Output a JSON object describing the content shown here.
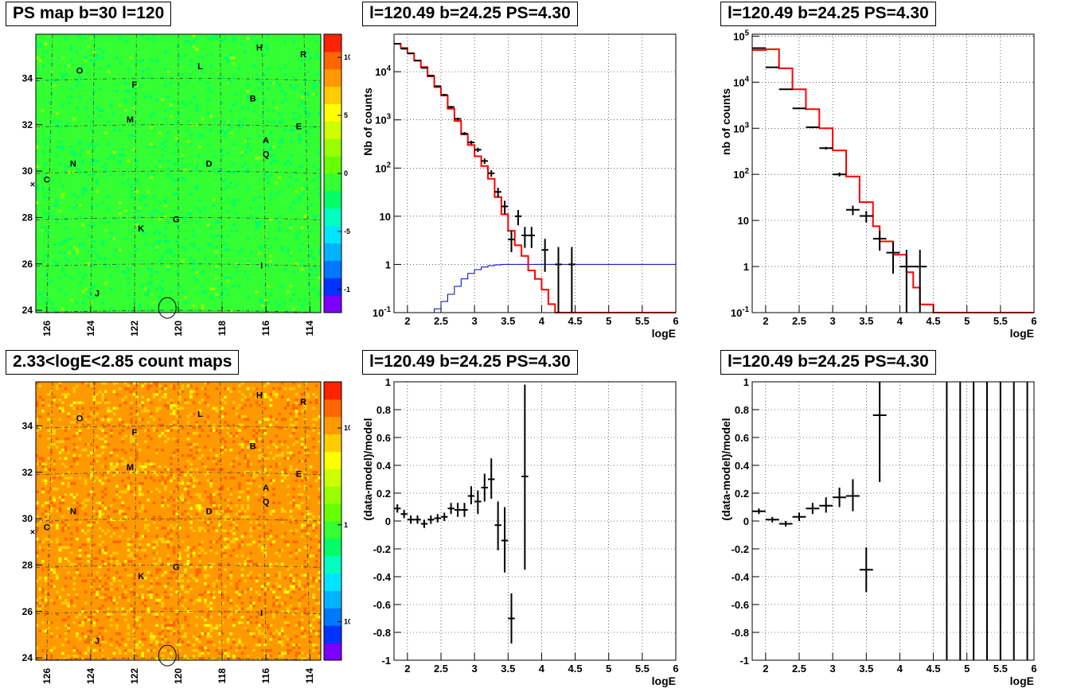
{
  "colors": {
    "model_line": "#ff0000",
    "data_points": "#000000",
    "blue_curve": "#0000cc",
    "grid": "#000000"
  },
  "chart_data": [
    {
      "id": "psmap",
      "type": "heatmap",
      "title": "PS map b=30 l=120",
      "x_ticks": [
        "126",
        "124",
        "122",
        "120",
        "118",
        "116",
        "114"
      ],
      "y_ticks": [
        "24",
        "26",
        "28",
        "30",
        "32",
        "34"
      ],
      "xlim": [
        126.5,
        113.5
      ],
      "ylim": [
        23.9,
        35.9
      ],
      "colorbar_ticks": [
        "10",
        "5",
        "0",
        "-5",
        "-10"
      ],
      "colorbar_range": [
        -12,
        12
      ],
      "colormap": [
        "#7b00ff",
        "#0033ff",
        "#0077ff",
        "#00b3ff",
        "#00e5ff",
        "#00ffc0",
        "#00ff66",
        "#33ff33",
        "#66ff00",
        "#99ff00",
        "#ccff00",
        "#ffff00",
        "#ffcc00",
        "#ff9900",
        "#ff6600",
        "#ff2200"
      ],
      "dominant_value": 0,
      "source_labels": [
        {
          "name": "O",
          "l": 124.5,
          "b": 34.2
        },
        {
          "name": "F",
          "l": 122.0,
          "b": 33.6
        },
        {
          "name": "L",
          "l": 119.0,
          "b": 34.4
        },
        {
          "name": "H",
          "l": 116.3,
          "b": 35.2
        },
        {
          "name": "R",
          "l": 114.3,
          "b": 34.9
        },
        {
          "name": "B",
          "l": 116.6,
          "b": 33.0
        },
        {
          "name": "M",
          "l": 122.2,
          "b": 32.1
        },
        {
          "name": "E",
          "l": 114.5,
          "b": 31.8
        },
        {
          "name": "A",
          "l": 116.0,
          "b": 31.2
        },
        {
          "name": "Q",
          "l": 116.0,
          "b": 30.6
        },
        {
          "name": "N",
          "l": 124.8,
          "b": 30.2
        },
        {
          "name": "D",
          "l": 118.6,
          "b": 30.2
        },
        {
          "name": "C",
          "l": 126.0,
          "b": 29.5
        },
        {
          "name": "G",
          "l": 120.1,
          "b": 27.8
        },
        {
          "name": "K",
          "l": 121.7,
          "b": 27.4
        },
        {
          "name": "I",
          "l": 116.2,
          "b": 25.8
        },
        {
          "name": "J",
          "l": 123.7,
          "b": 24.6
        }
      ],
      "circle": {
        "l": 120.5,
        "b": 24.1
      }
    },
    {
      "id": "spec1",
      "type": "line",
      "title": "l=120.49 b=24.25 PS=4.30",
      "xlabel": "logE",
      "ylabel": "Nb of counts",
      "xlim": [
        1.8,
        6.0
      ],
      "ylim": [
        0.1,
        60000
      ],
      "yscale": "log",
      "x_ticks": [
        "2",
        "2.5",
        "3",
        "3.5",
        "4",
        "4.5",
        "5",
        "5.5",
        "6"
      ],
      "y_ticks": [
        "10^-1",
        "1",
        "10",
        "10^2",
        "10^3",
        "10^4"
      ],
      "grid": true,
      "model_x": [
        1.8,
        1.9,
        2.0,
        2.1,
        2.2,
        2.3,
        2.4,
        2.5,
        2.6,
        2.7,
        2.8,
        2.9,
        3.0,
        3.1,
        3.2,
        3.3,
        3.4,
        3.5,
        3.6,
        3.7,
        3.8,
        3.9,
        4.0,
        4.1,
        4.2,
        4.3,
        4.4,
        4.5,
        6.0
      ],
      "model_y": [
        38000,
        31000,
        24000,
        17000,
        12500,
        8000,
        4800,
        3200,
        1700,
        950,
        500,
        300,
        175,
        110,
        60,
        25,
        11,
        5,
        2.5,
        1.5,
        0.75,
        0.5,
        0.3,
        0.15,
        0.1,
        0.08,
        0.1,
        0.1,
        0.1
      ],
      "blue_x": [
        1.8,
        2.2,
        2.4,
        2.5,
        2.6,
        2.7,
        2.8,
        2.9,
        3.0,
        3.1,
        3.2,
        3.3,
        3.4,
        3.6,
        3.8,
        6.0
      ],
      "blue_y": [
        0.1,
        0.1,
        0.12,
        0.17,
        0.24,
        0.35,
        0.5,
        0.65,
        0.78,
        0.88,
        0.94,
        0.98,
        1.0,
        1.0,
        1.0,
        1.0
      ],
      "points": [
        {
          "x": 1.85,
          "y": 38000,
          "xe": 0.05,
          "lo": 37000,
          "hi": 39000
        },
        {
          "x": 1.95,
          "y": 30000,
          "xe": 0.05,
          "lo": 29000,
          "hi": 31000
        },
        {
          "x": 2.05,
          "y": 24000,
          "xe": 0.05,
          "lo": 23000,
          "hi": 25000
        },
        {
          "x": 2.15,
          "y": 17000,
          "xe": 0.05,
          "lo": 16500,
          "hi": 17500
        },
        {
          "x": 2.25,
          "y": 12000,
          "xe": 0.05,
          "lo": 11600,
          "hi": 12400
        },
        {
          "x": 2.35,
          "y": 8300,
          "xe": 0.05,
          "lo": 8000,
          "hi": 8600
        },
        {
          "x": 2.45,
          "y": 5000,
          "xe": 0.05,
          "lo": 4800,
          "hi": 5200
        },
        {
          "x": 2.55,
          "y": 3300,
          "xe": 0.05,
          "lo": 3150,
          "hi": 3450
        },
        {
          "x": 2.65,
          "y": 1850,
          "xe": 0.05,
          "lo": 1750,
          "hi": 1950
        },
        {
          "x": 2.75,
          "y": 1050,
          "xe": 0.05,
          "lo": 990,
          "hi": 1110
        },
        {
          "x": 2.85,
          "y": 520,
          "xe": 0.05,
          "lo": 480,
          "hi": 560
        },
        {
          "x": 2.95,
          "y": 340,
          "xe": 0.05,
          "lo": 310,
          "hi": 370
        },
        {
          "x": 3.05,
          "y": 240,
          "xe": 0.05,
          "lo": 215,
          "hi": 265
        },
        {
          "x": 3.15,
          "y": 140,
          "xe": 0.05,
          "lo": 122,
          "hi": 158
        },
        {
          "x": 3.25,
          "y": 78,
          "xe": 0.05,
          "lo": 66,
          "hi": 90
        },
        {
          "x": 3.35,
          "y": 32,
          "xe": 0.05,
          "lo": 25,
          "hi": 39
        },
        {
          "x": 3.45,
          "y": 16,
          "xe": 0.05,
          "lo": 11,
          "hi": 21
        },
        {
          "x": 3.55,
          "y": 3.3,
          "xe": 0.05,
          "lo": 1.8,
          "hi": 5.0
        },
        {
          "x": 3.65,
          "y": 10,
          "xe": 0.05,
          "lo": 6.5,
          "hi": 13.5
        },
        {
          "x": 3.75,
          "y": 4,
          "xe": 0.05,
          "lo": 2.2,
          "hi": 6.0
        },
        {
          "x": 3.85,
          "y": 4,
          "xe": 0.05,
          "lo": 2.2,
          "hi": 6.0
        },
        {
          "x": 4.05,
          "y": 2,
          "xe": 0.05,
          "lo": 0.7,
          "hi": 3.4
        },
        {
          "x": 4.25,
          "y": 1,
          "xe": 0.05,
          "lo": 0.1,
          "hi": 2.3
        },
        {
          "x": 4.45,
          "y": 1,
          "xe": 0.05,
          "lo": 0.1,
          "hi": 2.3
        }
      ]
    },
    {
      "id": "spec2",
      "type": "line",
      "title": "l=120.49 b=24.25 PS=4.30",
      "xlabel": "logE",
      "ylabel": "nb of counts",
      "xlim": [
        1.8,
        6.0
      ],
      "ylim": [
        0.1,
        110000
      ],
      "yscale": "log",
      "x_ticks": [
        "2",
        "2.5",
        "3",
        "3.5",
        "4",
        "4.5",
        "5",
        "5.5",
        "6"
      ],
      "y_ticks": [
        "10^-1",
        "1",
        "10",
        "10^2",
        "10^3",
        "10^4",
        "10^5"
      ],
      "grid": true,
      "model_x": [
        1.8,
        2.0,
        2.2,
        2.4,
        2.6,
        2.8,
        3.0,
        3.2,
        3.4,
        3.6,
        3.7,
        3.9,
        4.1,
        4.2,
        4.3,
        4.5,
        6.0
      ],
      "model_y": [
        50000,
        52000,
        20000,
        7000,
        2600,
        1000,
        330,
        90,
        25,
        7.5,
        3.5,
        1.8,
        0.75,
        0.35,
        0.15,
        0.1,
        0.1
      ],
      "blue_x": [],
      "blue_y": [],
      "points": [
        {
          "x": 1.9,
          "y": 55000,
          "xe": 0.1,
          "lo": 54000,
          "hi": 56000
        },
        {
          "x": 2.1,
          "y": 21000,
          "xe": 0.1,
          "lo": 20500,
          "hi": 21500
        },
        {
          "x": 2.3,
          "y": 7000,
          "xe": 0.1,
          "lo": 6800,
          "hi": 7200
        },
        {
          "x": 2.5,
          "y": 2700,
          "xe": 0.1,
          "lo": 2600,
          "hi": 2800
        },
        {
          "x": 2.7,
          "y": 1050,
          "xe": 0.1,
          "lo": 1000,
          "hi": 1100
        },
        {
          "x": 2.9,
          "y": 370,
          "xe": 0.1,
          "lo": 345,
          "hi": 395
        },
        {
          "x": 3.1,
          "y": 100,
          "xe": 0.1,
          "lo": 90,
          "hi": 110
        },
        {
          "x": 3.3,
          "y": 17,
          "xe": 0.1,
          "lo": 13,
          "hi": 21
        },
        {
          "x": 3.5,
          "y": 12.5,
          "xe": 0.1,
          "lo": 9,
          "hi": 16
        },
        {
          "x": 3.7,
          "y": 4,
          "xe": 0.1,
          "lo": 2.2,
          "hi": 6.0
        },
        {
          "x": 3.9,
          "y": 2,
          "xe": 0.1,
          "lo": 0.7,
          "hi": 3.4
        },
        {
          "x": 4.1,
          "y": 1,
          "xe": 0.1,
          "lo": 0.1,
          "hi": 2.3
        },
        {
          "x": 4.3,
          "y": 1,
          "xe": 0.1,
          "lo": 0.1,
          "hi": 2.3
        }
      ]
    },
    {
      "id": "countmap",
      "type": "heatmap",
      "title": "2.33<logE<2.85 count maps",
      "x_ticks": [
        "126",
        "124",
        "122",
        "120",
        "118",
        "116",
        "114"
      ],
      "y_ticks": [
        "24",
        "26",
        "28",
        "30",
        "32",
        "34"
      ],
      "xlim": [
        126.5,
        113.5
      ],
      "ylim": [
        23.9,
        35.9
      ],
      "colorbar_ticks": [
        "10",
        "1",
        "10^-1"
      ],
      "colorbar_range": [
        0.04,
        30
      ],
      "colorbar_scale": "log",
      "colormap": [
        "#7b00ff",
        "#0033ff",
        "#0077ff",
        "#00b3ff",
        "#00e5ff",
        "#00ffc0",
        "#00ff66",
        "#33ff33",
        "#66ff00",
        "#99ff00",
        "#ccff00",
        "#ffff00",
        "#ffcc00",
        "#ff9900",
        "#ff6600",
        "#ff2200"
      ],
      "dominant_value": 8,
      "source_labels": [
        {
          "name": "O",
          "l": 124.5,
          "b": 34.2
        },
        {
          "name": "F",
          "l": 122.0,
          "b": 33.6
        },
        {
          "name": "L",
          "l": 119.0,
          "b": 34.4
        },
        {
          "name": "H",
          "l": 116.3,
          "b": 35.2
        },
        {
          "name": "R",
          "l": 114.3,
          "b": 34.9
        },
        {
          "name": "B",
          "l": 116.6,
          "b": 33.0
        },
        {
          "name": "M",
          "l": 122.2,
          "b": 32.1
        },
        {
          "name": "E",
          "l": 114.5,
          "b": 31.8
        },
        {
          "name": "A",
          "l": 116.0,
          "b": 31.2
        },
        {
          "name": "Q",
          "l": 116.0,
          "b": 30.6
        },
        {
          "name": "N",
          "l": 124.8,
          "b": 30.2
        },
        {
          "name": "D",
          "l": 118.6,
          "b": 30.2
        },
        {
          "name": "C",
          "l": 126.0,
          "b": 29.5
        },
        {
          "name": "G",
          "l": 120.1,
          "b": 27.8
        },
        {
          "name": "K",
          "l": 121.7,
          "b": 27.4
        },
        {
          "name": "I",
          "l": 116.2,
          "b": 25.8
        },
        {
          "name": "J",
          "l": 123.7,
          "b": 24.6
        }
      ],
      "circle": {
        "l": 120.5,
        "b": 24.1
      }
    },
    {
      "id": "res1",
      "type": "scatter",
      "title": "l=120.49 b=24.25 PS=4.30",
      "xlabel": "logE",
      "ylabel": "(data-model)/model",
      "xlim": [
        1.8,
        6.0
      ],
      "ylim": [
        -1,
        1
      ],
      "x_ticks": [
        "2",
        "2.5",
        "3",
        "3.5",
        "4",
        "4.5",
        "5",
        "5.5",
        "6"
      ],
      "y_ticks": [
        "-1",
        "-0.8",
        "-0.6",
        "-0.4",
        "-0.2",
        "0",
        "0.2",
        "0.4",
        "0.6",
        "0.8",
        "1"
      ],
      "grid": true,
      "points": [
        {
          "x": 1.85,
          "y": 0.09,
          "xe": 0.05,
          "lo": 0.06,
          "hi": 0.12
        },
        {
          "x": 1.95,
          "y": 0.05,
          "xe": 0.05,
          "lo": 0.02,
          "hi": 0.08
        },
        {
          "x": 2.05,
          "y": 0.01,
          "xe": 0.05,
          "lo": -0.02,
          "hi": 0.04
        },
        {
          "x": 2.15,
          "y": 0.01,
          "xe": 0.05,
          "lo": -0.02,
          "hi": 0.04
        },
        {
          "x": 2.25,
          "y": -0.02,
          "xe": 0.05,
          "lo": -0.05,
          "hi": 0.01
        },
        {
          "x": 2.35,
          "y": 0.01,
          "xe": 0.05,
          "lo": -0.02,
          "hi": 0.04
        },
        {
          "x": 2.45,
          "y": 0.02,
          "xe": 0.05,
          "lo": -0.01,
          "hi": 0.05
        },
        {
          "x": 2.55,
          "y": 0.03,
          "xe": 0.05,
          "lo": 0.0,
          "hi": 0.06
        },
        {
          "x": 2.65,
          "y": 0.09,
          "xe": 0.05,
          "lo": 0.05,
          "hi": 0.13
        },
        {
          "x": 2.75,
          "y": 0.08,
          "xe": 0.05,
          "lo": 0.03,
          "hi": 0.13
        },
        {
          "x": 2.85,
          "y": 0.08,
          "xe": 0.05,
          "lo": 0.03,
          "hi": 0.13
        },
        {
          "x": 2.95,
          "y": 0.18,
          "xe": 0.05,
          "lo": 0.12,
          "hi": 0.25
        },
        {
          "x": 3.05,
          "y": 0.14,
          "xe": 0.05,
          "lo": 0.05,
          "hi": 0.22
        },
        {
          "x": 3.15,
          "y": 0.24,
          "xe": 0.05,
          "lo": 0.14,
          "hi": 0.34
        },
        {
          "x": 3.25,
          "y": 0.3,
          "xe": 0.05,
          "lo": 0.16,
          "hi": 0.45
        },
        {
          "x": 3.35,
          "y": -0.03,
          "xe": 0.05,
          "lo": -0.21,
          "hi": 0.14
        },
        {
          "x": 3.45,
          "y": -0.14,
          "xe": 0.05,
          "lo": -0.37,
          "hi": 0.1
        },
        {
          "x": 3.55,
          "y": -0.7,
          "xe": 0.05,
          "lo": -0.88,
          "hi": -0.52
        },
        {
          "x": 3.75,
          "y": 0.32,
          "xe": 0.05,
          "lo": -0.35,
          "hi": 0.98
        }
      ]
    },
    {
      "id": "res2",
      "type": "scatter",
      "title": "l=120.49 b=24.25 PS=4.30",
      "xlabel": "logE",
      "ylabel": "(data-model)/model",
      "xlim": [
        1.8,
        6.0
      ],
      "ylim": [
        -1,
        1
      ],
      "x_ticks": [
        "2",
        "2.5",
        "3",
        "3.5",
        "4",
        "4.5",
        "5",
        "5.5",
        "6"
      ],
      "y_ticks": [
        "-1",
        "-0.8",
        "-0.6",
        "-0.4",
        "-0.2",
        "0",
        "0.2",
        "0.4",
        "0.6",
        "0.8",
        "1"
      ],
      "grid": true,
      "points": [
        {
          "x": 1.9,
          "y": 0.07,
          "xe": 0.1,
          "lo": 0.05,
          "hi": 0.09
        },
        {
          "x": 2.1,
          "y": 0.01,
          "xe": 0.1,
          "lo": -0.01,
          "hi": 0.03
        },
        {
          "x": 2.3,
          "y": -0.02,
          "xe": 0.1,
          "lo": -0.04,
          "hi": 0.0
        },
        {
          "x": 2.5,
          "y": 0.03,
          "xe": 0.1,
          "lo": 0.0,
          "hi": 0.06
        },
        {
          "x": 2.7,
          "y": 0.09,
          "xe": 0.1,
          "lo": 0.05,
          "hi": 0.13
        },
        {
          "x": 2.9,
          "y": 0.11,
          "xe": 0.1,
          "lo": 0.06,
          "hi": 0.17
        },
        {
          "x": 3.1,
          "y": 0.17,
          "xe": 0.1,
          "lo": 0.1,
          "hi": 0.24
        },
        {
          "x": 3.3,
          "y": 0.18,
          "xe": 0.1,
          "lo": 0.07,
          "hi": 0.3
        },
        {
          "x": 3.5,
          "y": -0.35,
          "xe": 0.1,
          "lo": -0.51,
          "hi": -0.19
        },
        {
          "x": 3.7,
          "y": 0.76,
          "xe": 0.1,
          "lo": 0.28,
          "hi": 1.0
        },
        {
          "x": 4.7,
          "y": 0,
          "xe": 0,
          "lo": -1,
          "hi": 1
        },
        {
          "x": 4.9,
          "y": 0,
          "xe": 0,
          "lo": -1,
          "hi": 1
        },
        {
          "x": 5.1,
          "y": 0,
          "xe": 0,
          "lo": -1,
          "hi": 1
        },
        {
          "x": 5.3,
          "y": 0,
          "xe": 0,
          "lo": -1,
          "hi": 1
        },
        {
          "x": 5.5,
          "y": 0,
          "xe": 0,
          "lo": -1,
          "hi": 1
        },
        {
          "x": 5.7,
          "y": 0,
          "xe": 0,
          "lo": -1,
          "hi": 1
        },
        {
          "x": 5.9,
          "y": 0,
          "xe": 0,
          "lo": -1,
          "hi": 1
        }
      ]
    }
  ]
}
